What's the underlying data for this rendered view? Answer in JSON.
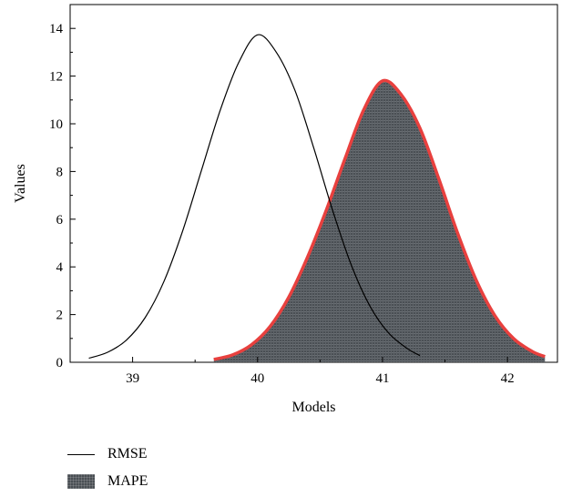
{
  "chart_data": {
    "type": "line",
    "title": "",
    "xlabel": "Models",
    "ylabel": "Values",
    "xlim": [
      38.5,
      42.4
    ],
    "ylim": [
      0,
      15
    ],
    "xticks": [
      39,
      40,
      41,
      42
    ],
    "yticks": [
      0,
      2,
      4,
      6,
      8,
      10,
      12,
      14
    ],
    "grid": false,
    "legend_placement": "bottom-left",
    "series": [
      {
        "name": "RMSE",
        "style": "line",
        "color": "#000000",
        "x": [
          38.65,
          38.8,
          38.95,
          39.1,
          39.25,
          39.4,
          39.55,
          39.7,
          39.85,
          40.0,
          40.15,
          40.3,
          40.45,
          40.6,
          40.75,
          40.9,
          41.05,
          41.2,
          41.3
        ],
        "y": [
          0.17,
          0.42,
          0.93,
          1.87,
          3.38,
          5.5,
          8.03,
          10.55,
          12.58,
          13.73,
          13.0,
          11.39,
          8.98,
          6.38,
          4.08,
          2.35,
          1.22,
          0.57,
          0.28
        ]
      },
      {
        "name": "MAPE",
        "style": "filled-area",
        "color": "#4a4f54",
        "edge_color": "#e8403e",
        "x": [
          39.65,
          39.8,
          39.95,
          40.1,
          40.25,
          40.4,
          40.55,
          40.7,
          40.85,
          41.0,
          41.15,
          41.3,
          41.45,
          41.6,
          41.75,
          41.9,
          42.05,
          42.2,
          42.3
        ],
        "y": [
          0.12,
          0.31,
          0.73,
          1.5,
          2.73,
          4.41,
          6.38,
          8.54,
          10.59,
          11.8,
          11.22,
          9.81,
          7.7,
          5.43,
          3.44,
          1.95,
          0.99,
          0.45,
          0.24
        ]
      }
    ]
  }
}
